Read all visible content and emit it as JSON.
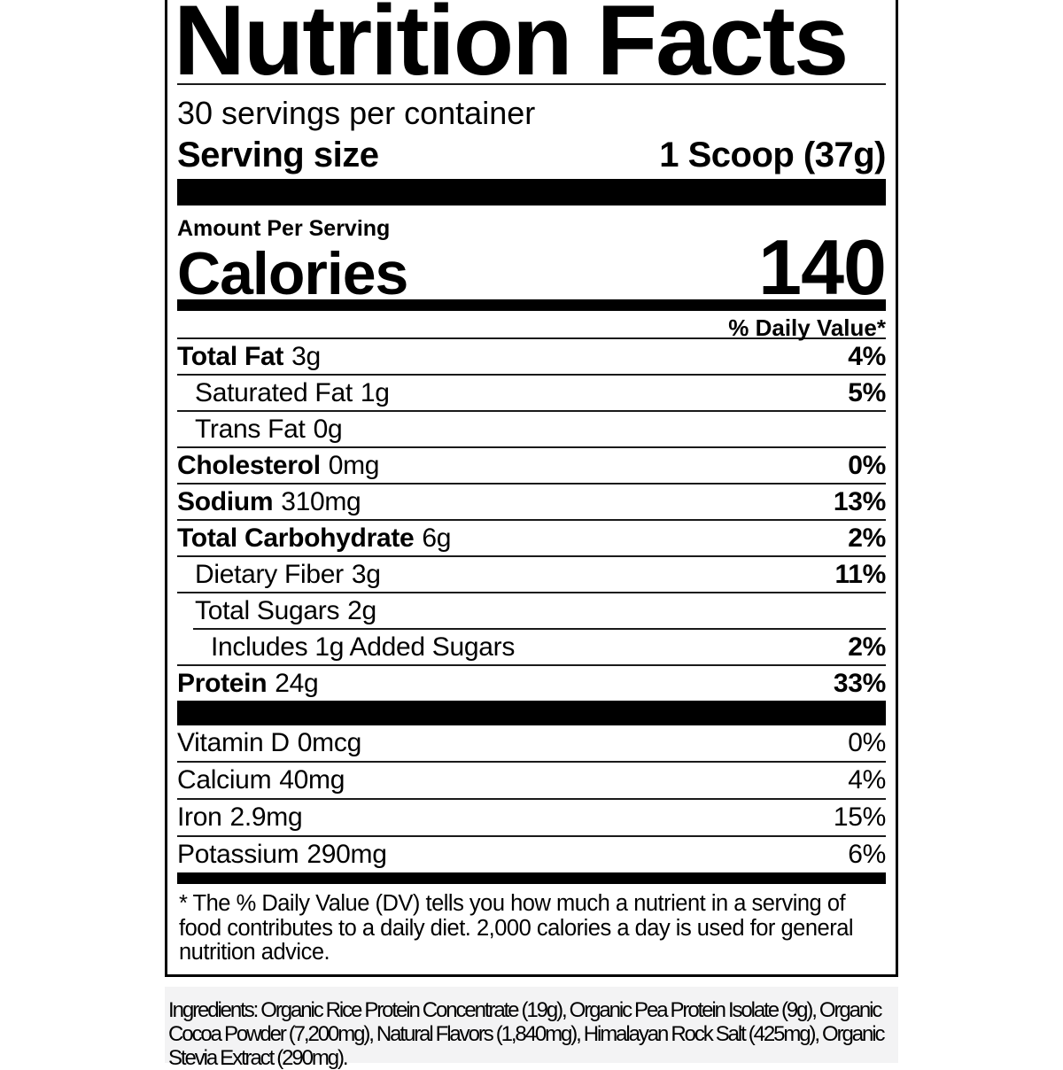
{
  "colors": {
    "text": "#000000",
    "panel_border": "#000000",
    "rule": "#1a1a1a",
    "ingredients_bg": "#f3f3f4"
  },
  "label": {
    "title": "Nutrition Facts",
    "servings_per_container": "30 servings per container",
    "serving_size": {
      "label": "Serving size",
      "value": "1 Scoop (37g)"
    },
    "amount_per_serving": "Amount Per Serving",
    "calories": {
      "label": "Calories",
      "value": "140"
    },
    "daily_value_header": "% Daily Value*",
    "nutrients": [
      {
        "name": "Total Fat",
        "amount": "3g",
        "dv": "4%"
      },
      {
        "name": "Saturated Fat",
        "amount": "1g",
        "dv": "5%"
      },
      {
        "name": "Trans Fat",
        "amount": "0g",
        "dv": ""
      },
      {
        "name": "Cholesterol",
        "amount": "0mg",
        "dv": "0%"
      },
      {
        "name": "Sodium",
        "amount": "310mg",
        "dv": "13%"
      },
      {
        "name": "Total Carbohydrate",
        "amount": "6g",
        "dv": "2%"
      },
      {
        "name": "Dietary Fiber",
        "amount": "3g",
        "dv": "11%"
      },
      {
        "name": "Total Sugars",
        "amount": "2g",
        "dv": ""
      },
      {
        "name": "Includes 1g Added Sugars",
        "amount": "",
        "dv": "2%"
      },
      {
        "name": "Protein",
        "amount": "24g",
        "dv": "33%"
      }
    ],
    "vitamins": [
      {
        "name": "Vitamin D",
        "amount": "0mcg",
        "dv": "0%"
      },
      {
        "name": "Calcium",
        "amount": "40mg",
        "dv": "4%"
      },
      {
        "name": "Iron",
        "amount": "2.9mg",
        "dv": "15%"
      },
      {
        "name": "Potassium",
        "amount": "290mg",
        "dv": "6%"
      }
    ],
    "footnote": "* The % Daily Value (DV) tells you how much a nutrient in a serving of food contributes to a daily diet. 2,000 calories a day is used for general nutrition advice."
  },
  "ingredients": "Ingredients: Organic Rice Protein Concentrate (19g), Organic Pea Protein Isolate (9g), Organic Cocoa Powder (7,200mg), Natural Flavors (1,840mg), Himalayan Rock Salt (425mg), Organic Stevia Extract (290mg)."
}
